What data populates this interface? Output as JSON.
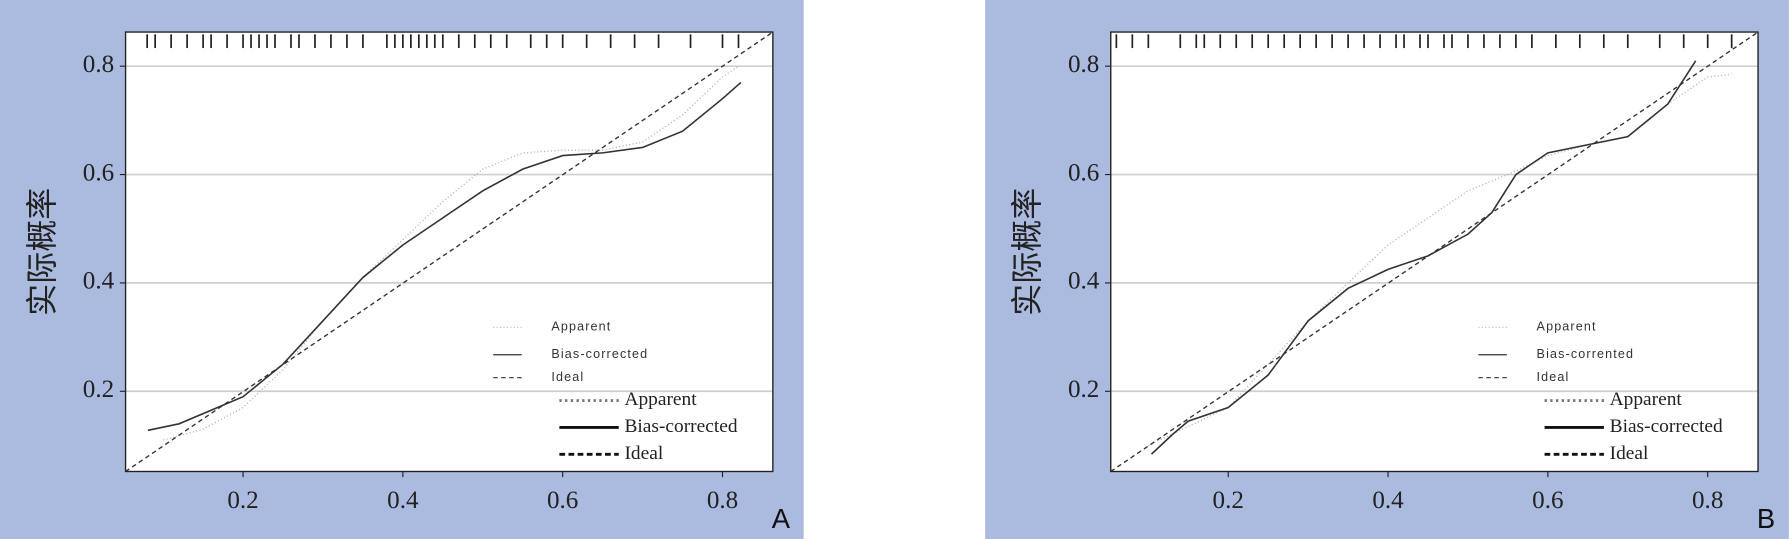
{
  "chart_data": [
    {
      "type": "line",
      "panel_label": "A",
      "ylabel": "实际概率",
      "xlim": [
        0.053,
        0.863
      ],
      "ylim": [
        0.052,
        0.863
      ],
      "xticks": [
        0.2,
        0.4,
        0.6,
        0.8
      ],
      "yticks": [
        0.2,
        0.4,
        0.6,
        0.8
      ],
      "grid": true,
      "rug": [
        0.08,
        0.09,
        0.11,
        0.13,
        0.15,
        0.16,
        0.18,
        0.2,
        0.21,
        0.22,
        0.23,
        0.24,
        0.26,
        0.27,
        0.29,
        0.31,
        0.33,
        0.35,
        0.38,
        0.39,
        0.4,
        0.41,
        0.42,
        0.43,
        0.44,
        0.45,
        0.47,
        0.49,
        0.51,
        0.53,
        0.56,
        0.58,
        0.6,
        0.63,
        0.66,
        0.69,
        0.72,
        0.76,
        0.8,
        0.82
      ],
      "legend_small": [
        "Apparent",
        "Bias-corrected",
        "Ideal"
      ],
      "series": [
        {
          "name": "Apparent",
          "color": "#b8b8b8",
          "dash": "1,2",
          "x": [
            0.1,
            0.15,
            0.2,
            0.25,
            0.3,
            0.35,
            0.4,
            0.45,
            0.5,
            0.55,
            0.6,
            0.65,
            0.7,
            0.75,
            0.8,
            0.82
          ],
          "values": [
            0.11,
            0.13,
            0.17,
            0.24,
            0.33,
            0.41,
            0.48,
            0.55,
            0.61,
            0.64,
            0.645,
            0.645,
            0.66,
            0.71,
            0.78,
            0.8
          ]
        },
        {
          "name": "Bias-corrected",
          "color": "#333333",
          "dash": "none",
          "x": [
            0.081,
            0.12,
            0.2,
            0.25,
            0.3,
            0.35,
            0.4,
            0.45,
            0.5,
            0.55,
            0.6,
            0.65,
            0.7,
            0.75,
            0.8,
            0.823
          ],
          "values": [
            0.128,
            0.14,
            0.19,
            0.25,
            0.33,
            0.41,
            0.47,
            0.52,
            0.57,
            0.61,
            0.635,
            0.64,
            0.65,
            0.68,
            0.74,
            0.77
          ]
        },
        {
          "name": "Ideal",
          "color": "#333333",
          "dash": "4,3",
          "x": [
            0.053,
            0.863
          ],
          "values": [
            0.052,
            0.863
          ]
        }
      ]
    },
    {
      "type": "line",
      "panel_label": "B",
      "ylabel": "实际概率",
      "xlim": [
        0.053,
        0.863
      ],
      "ylim": [
        0.052,
        0.863
      ],
      "xticks": [
        0.2,
        0.4,
        0.6,
        0.8
      ],
      "yticks": [
        0.2,
        0.4,
        0.6,
        0.8
      ],
      "grid": true,
      "rug": [
        0.06,
        0.08,
        0.1,
        0.14,
        0.16,
        0.17,
        0.19,
        0.21,
        0.23,
        0.25,
        0.27,
        0.29,
        0.31,
        0.33,
        0.35,
        0.37,
        0.39,
        0.41,
        0.42,
        0.44,
        0.45,
        0.47,
        0.48,
        0.5,
        0.52,
        0.54,
        0.56,
        0.58,
        0.61,
        0.64,
        0.67,
        0.7,
        0.74,
        0.77,
        0.8,
        0.83
      ],
      "legend_small": [
        "Apparent",
        "Bias-corrented",
        "Ideal"
      ],
      "series": [
        {
          "name": "Apparent",
          "color": "#b8b8b8",
          "dash": "1,2",
          "x": [
            0.1,
            0.2,
            0.3,
            0.4,
            0.5,
            0.55,
            0.6,
            0.65,
            0.7,
            0.75,
            0.8,
            0.83
          ],
          "values": [
            0.1,
            0.17,
            0.33,
            0.47,
            0.57,
            0.6,
            0.635,
            0.655,
            0.67,
            0.73,
            0.78,
            0.785
          ]
        },
        {
          "name": "Bias-corrected",
          "color": "#333333",
          "dash": "none",
          "x": [
            0.104,
            0.13,
            0.15,
            0.2,
            0.25,
            0.3,
            0.35,
            0.4,
            0.45,
            0.5,
            0.53,
            0.56,
            0.6,
            0.65,
            0.7,
            0.75,
            0.785
          ],
          "values": [
            0.084,
            0.12,
            0.145,
            0.17,
            0.23,
            0.33,
            0.39,
            0.425,
            0.45,
            0.49,
            0.53,
            0.6,
            0.64,
            0.655,
            0.67,
            0.73,
            0.81
          ]
        },
        {
          "name": "Ideal",
          "color": "#333333",
          "dash": "4,3",
          "x": [
            0.053,
            0.863
          ],
          "values": [
            0.052,
            0.863
          ]
        }
      ]
    }
  ]
}
